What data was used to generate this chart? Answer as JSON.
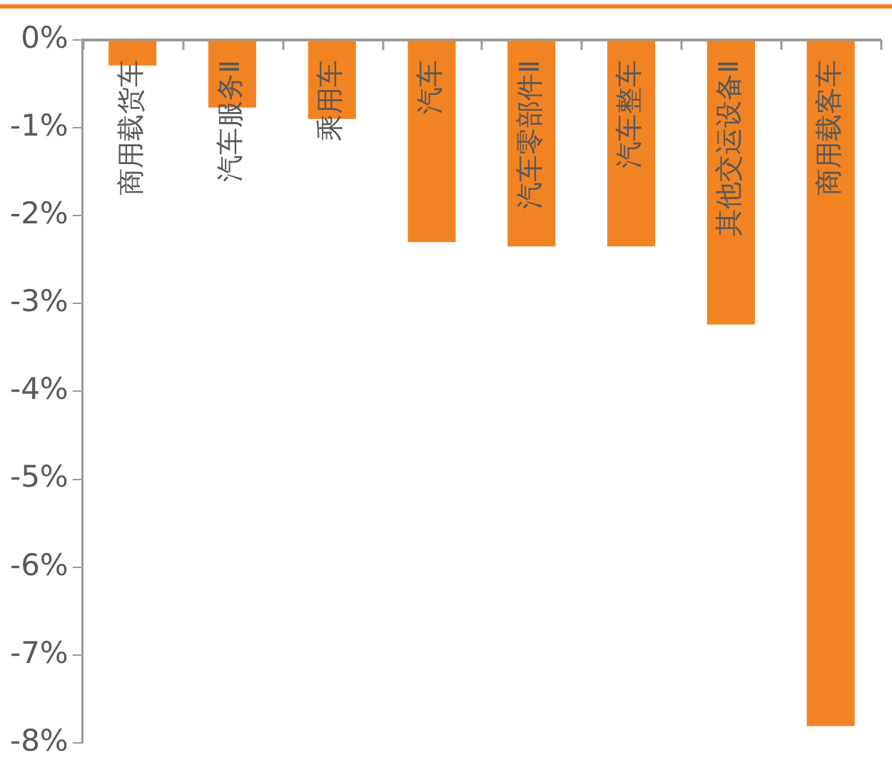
{
  "chart_data": {
    "type": "bar",
    "categories": [
      "商用载货车",
      "汽车服务Ⅱ",
      "乘用车",
      "汽车",
      "汽车零部件Ⅱ",
      "汽车整车",
      "其他交运设备Ⅱ",
      "商用载客车"
    ],
    "values": [
      -0.29,
      -0.77,
      -0.9,
      -2.3,
      -2.35,
      -2.35,
      -3.24,
      -7.81
    ],
    "color": "#f28322",
    "ylim": [
      -8,
      0
    ],
    "yticks": [
      {
        "value": 0,
        "label": "0%"
      },
      {
        "value": -1,
        "label": "-1%"
      },
      {
        "value": -2,
        "label": "-2%"
      },
      {
        "value": -3,
        "label": "-3%"
      },
      {
        "value": -4,
        "label": "-4%"
      },
      {
        "value": -5,
        "label": "-5%"
      },
      {
        "value": -6,
        "label": "-6%"
      },
      {
        "value": -7,
        "label": "-7%"
      },
      {
        "value": -8,
        "label": "-8%"
      }
    ],
    "grid": false
  }
}
